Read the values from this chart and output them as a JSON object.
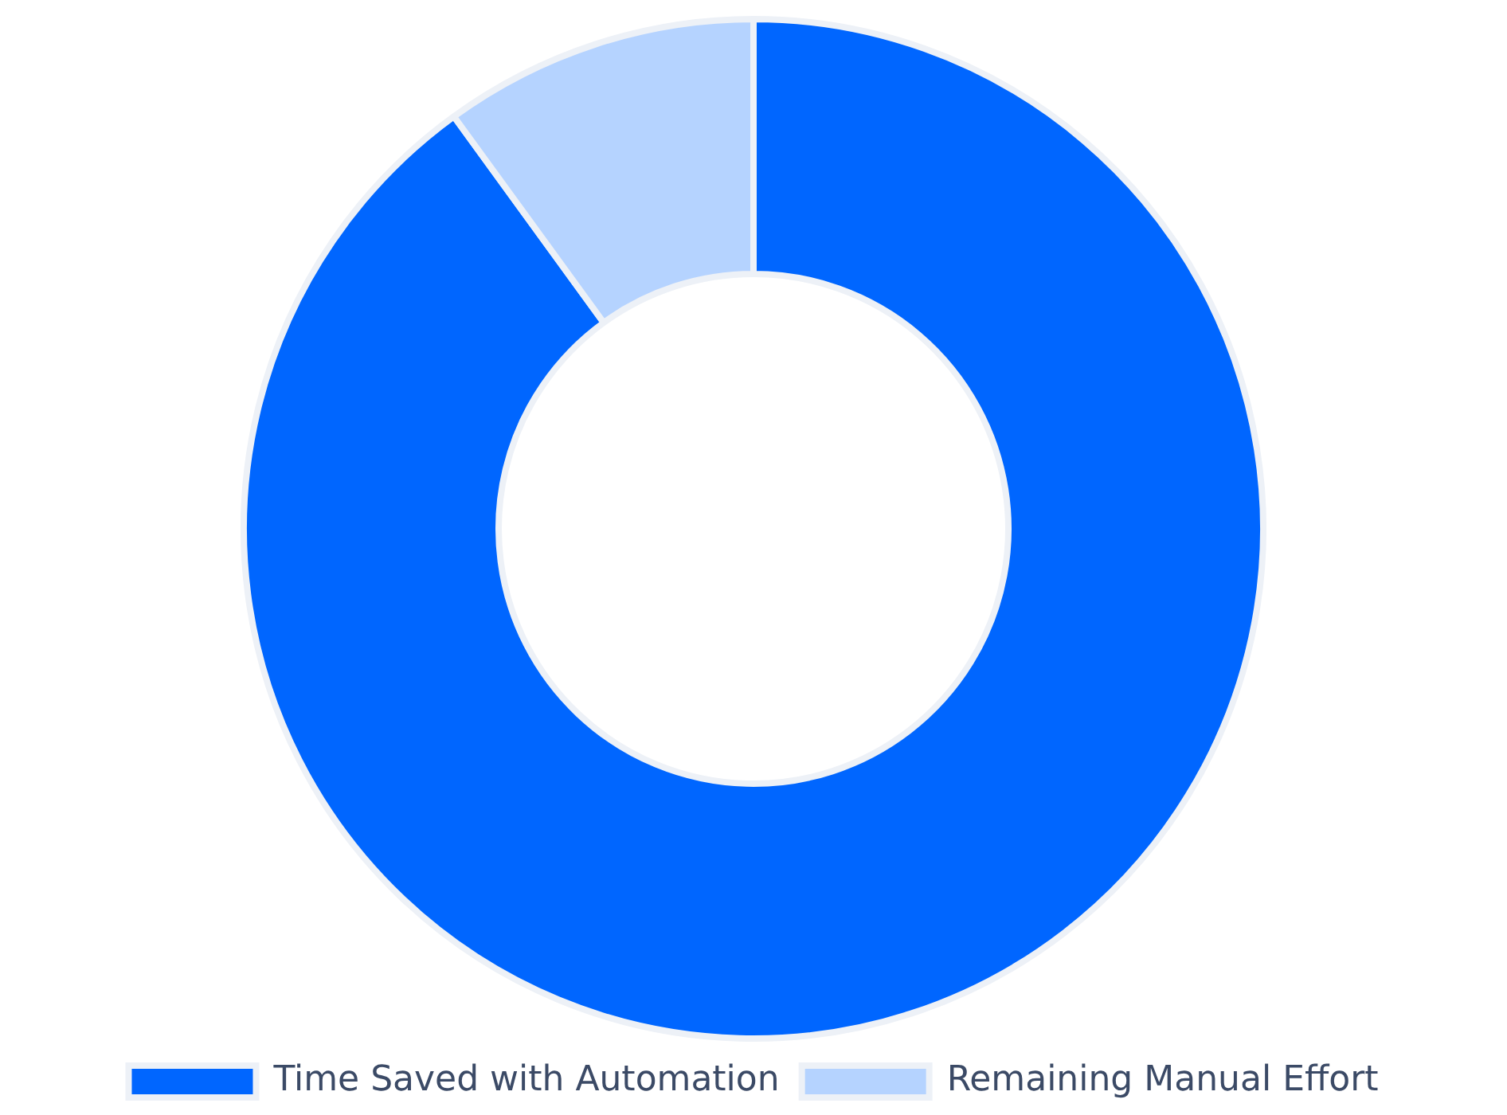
{
  "chart_data": {
    "type": "donut",
    "categories": [
      "Time Saved with Automation",
      "Remaining Manual Effort"
    ],
    "values": [
      90,
      10
    ],
    "colors": [
      "#0066ff",
      "#b5d3ff"
    ],
    "legend": "bottom"
  }
}
